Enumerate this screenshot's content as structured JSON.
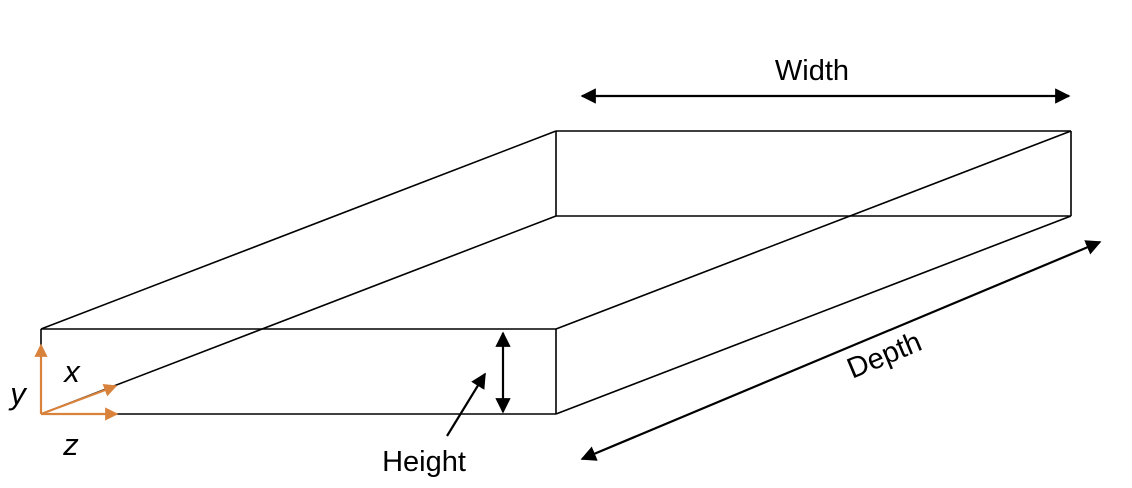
{
  "labels": {
    "width": "Width",
    "height": "Height",
    "depth": "Depth"
  },
  "axes": {
    "x": "x",
    "y": "y",
    "z": "z",
    "color": "#d9823b"
  },
  "colors": {
    "lines": "#000000",
    "background": "#ffffff"
  }
}
